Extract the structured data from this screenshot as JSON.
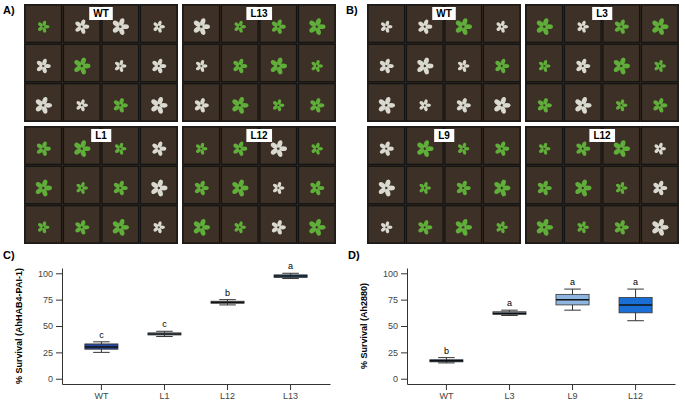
{
  "panels": [
    {
      "letter": "A)",
      "labels": [
        "WT",
        "L13",
        "L1",
        "L12"
      ]
    },
    {
      "letter": "B)",
      "labels": [
        "WT",
        "L3",
        "L9",
        "L12"
      ]
    }
  ],
  "chart_data": [
    {
      "type": "box",
      "title": "C)",
      "y_label": "% Survival (AhHAB4-PAI-1)",
      "categories": [
        "WT",
        "L1",
        "L12",
        "L13"
      ],
      "min": [
        25,
        40,
        70,
        95
      ],
      "q1": [
        28,
        41.5,
        71.5,
        96
      ],
      "median": [
        30,
        42.5,
        72.5,
        97.5
      ],
      "q3": [
        33,
        43.5,
        73.5,
        98.5
      ],
      "max": [
        35,
        45,
        75,
        100
      ],
      "annotations": [
        "c",
        "c",
        "b",
        "a"
      ],
      "colors": [
        "#27489a",
        "#a9c9e3",
        "#d6e6ef",
        "#3b86c8"
      ],
      "ylim": [
        -5,
        105
      ],
      "yticks": [
        0,
        25,
        50,
        75,
        100
      ],
      "grid": false
    },
    {
      "type": "box",
      "title": "D)",
      "y_label": "% Survival (Ah2880)",
      "categories": [
        "WT",
        "L3",
        "L9",
        "L12"
      ],
      "min": [
        15,
        60,
        65,
        55
      ],
      "q1": [
        16,
        61,
        70,
        62.5
      ],
      "median": [
        17,
        62,
        75,
        70
      ],
      "q3": [
        18,
        63.5,
        80,
        77
      ],
      "max": [
        20,
        65,
        85,
        85
      ],
      "annotations": [
        "b",
        "a",
        "a",
        "a"
      ],
      "colors": [
        "#1f4fa8",
        "#b4c8dc",
        "#8fb6e0",
        "#1a6fd6"
      ],
      "ylim": [
        -5,
        105
      ],
      "yticks": [
        0,
        25,
        50,
        75,
        100
      ],
      "grid": false
    }
  ]
}
